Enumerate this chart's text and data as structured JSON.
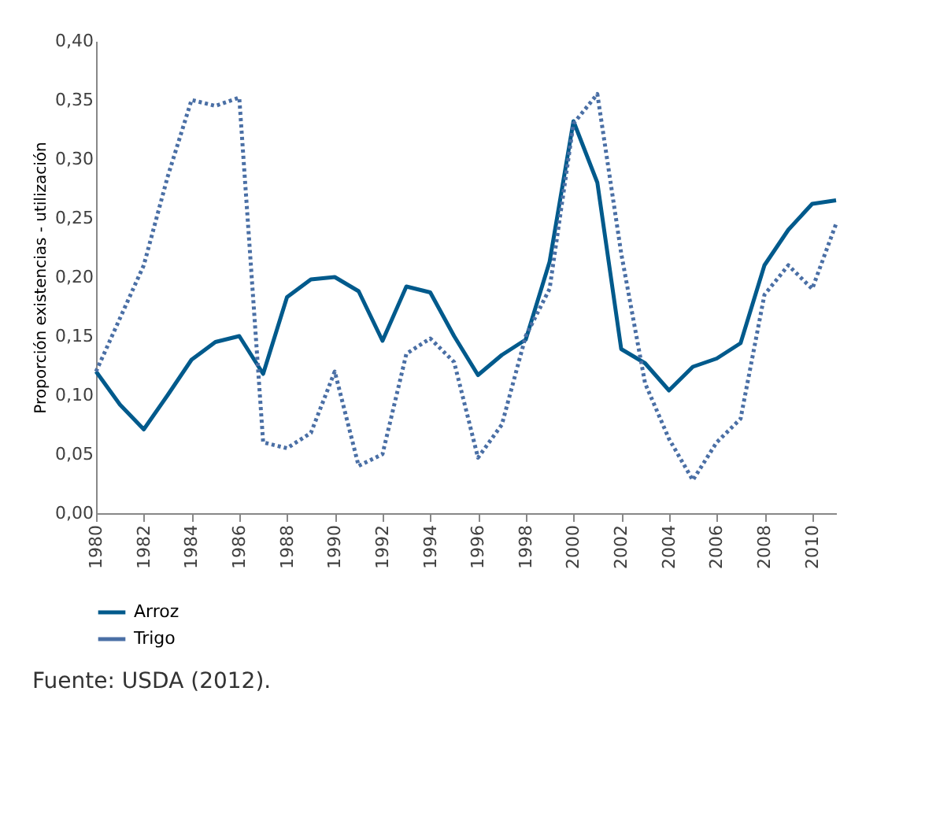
{
  "chart_data": {
    "type": "line",
    "ylabel": "Proporción existencias - utilización",
    "x": [
      1980,
      1981,
      1982,
      1983,
      1984,
      1985,
      1986,
      1987,
      1988,
      1989,
      1990,
      1991,
      1992,
      1993,
      1994,
      1995,
      1996,
      1997,
      1998,
      1999,
      2000,
      2001,
      2002,
      2003,
      2004,
      2005,
      2006,
      2007,
      2008,
      2009,
      2010,
      2011
    ],
    "series": [
      {
        "name": "Arroz",
        "color": "#005a8c",
        "line_style": "solid",
        "values": [
          0.12,
          0.092,
          0.071,
          0.1,
          0.13,
          0.145,
          0.15,
          0.118,
          0.183,
          0.198,
          0.2,
          0.188,
          0.146,
          0.192,
          0.187,
          0.15,
          0.117,
          0.134,
          0.147,
          0.213,
          0.332,
          0.28,
          0.139,
          0.127,
          0.104,
          0.124,
          0.131,
          0.144,
          0.21,
          0.24,
          0.262,
          0.265
        ]
      },
      {
        "name": "Trigo",
        "color": "#4a6fa5",
        "line_style": "dotted",
        "values": [
          0.12,
          0.165,
          0.21,
          0.285,
          0.35,
          0.345,
          0.352,
          0.06,
          0.055,
          0.068,
          0.12,
          0.04,
          0.05,
          0.135,
          0.148,
          0.128,
          0.047,
          0.075,
          0.15,
          0.19,
          0.33,
          0.355,
          0.22,
          0.11,
          0.063,
          0.028,
          0.06,
          0.08,
          0.185,
          0.21,
          0.19,
          0.245
        ]
      }
    ],
    "xlim": [
      1980,
      2011
    ],
    "xticks": [
      1980,
      1982,
      1984,
      1986,
      1988,
      1990,
      1992,
      1994,
      1996,
      1998,
      2000,
      2002,
      2004,
      2006,
      2008,
      2010
    ],
    "ylim": [
      0,
      0.4
    ],
    "yticks": [
      {
        "value": 0,
        "label": "0,00"
      },
      {
        "value": 0.05,
        "label": "0,05"
      },
      {
        "value": 0.1,
        "label": "0,10"
      },
      {
        "value": 0.15,
        "label": "0,15"
      },
      {
        "value": 0.2,
        "label": "0,20"
      },
      {
        "value": 0.25,
        "label": "0,25"
      },
      {
        "value": 0.3,
        "label": "0,30"
      },
      {
        "value": 0.35,
        "label": "0,35"
      },
      {
        "value": 0.4,
        "label": "0,40"
      }
    ],
    "grid": false,
    "legend": "bottom left",
    "marker": "none",
    "annotations": [
      "Fuente: USDA (2012)."
    ]
  }
}
